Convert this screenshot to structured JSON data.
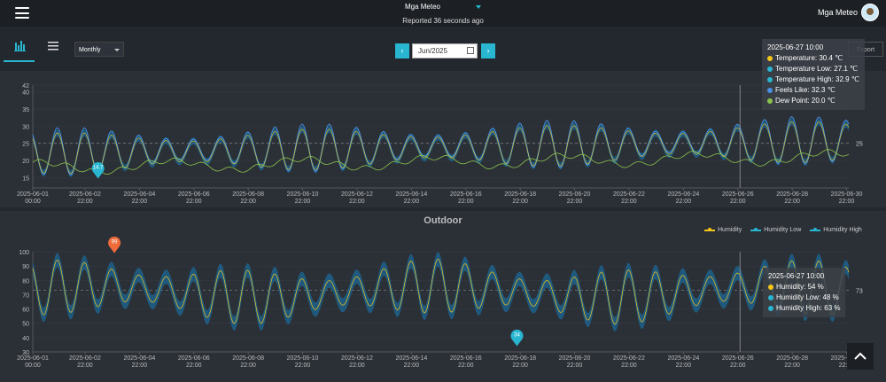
{
  "header": {
    "station": "Mga Meteo",
    "reported": "Reported 36 seconds ago",
    "user": "Mga Meteo"
  },
  "toolbar": {
    "period": "Monthly",
    "month": "Jun/2025",
    "prev": "‹",
    "next": "›",
    "export": "Export"
  },
  "temp_tooltip": {
    "time": "2025-06-27 10:00",
    "rows": [
      {
        "label": "Temperature: 30.4 ℃",
        "color": "#f5c518"
      },
      {
        "label": "Temperature Low: 27.1 ℃",
        "color": "#29b6d1"
      },
      {
        "label": "Temperature High: 32.9 ℃",
        "color": "#29b6d1"
      },
      {
        "label": "Feels Like: 32.3 ℃",
        "color": "#4a90e2"
      },
      {
        "label": "Dew Point: 20.0 ℃",
        "color": "#8bc34a"
      }
    ]
  },
  "hum_tooltip": {
    "time": "2025-06-27 10:00",
    "rows": [
      {
        "label": "Humidity: 54 %",
        "color": "#f5c518"
      },
      {
        "label": "Humidity Low: 48 %",
        "color": "#29b6d1"
      },
      {
        "label": "Humidity High: 63 %",
        "color": "#29b6d1"
      }
    ]
  },
  "outdoor_title": "Outdoor",
  "legend": [
    {
      "label": "Humidity",
      "color": "#f5c518"
    },
    {
      "label": "Humidity Low",
      "color": "#29b6d1"
    },
    {
      "label": "Humidity High",
      "color": "#29b6d1"
    }
  ],
  "x_ticks": [
    [
      "2025-06-01",
      "00:00"
    ],
    [
      "2025-06-02",
      "22:00"
    ],
    [
      "2025-06-04",
      "22:00"
    ],
    [
      "2025-06-06",
      "22:00"
    ],
    [
      "2025-06-08",
      "22:00"
    ],
    [
      "2025-06-10",
      "22:00"
    ],
    [
      "2025-06-12",
      "22:00"
    ],
    [
      "2025-06-14",
      "22:00"
    ],
    [
      "2025-06-16",
      "22:00"
    ],
    [
      "2025-06-18",
      "22:00"
    ],
    [
      "2025-06-20",
      "22:00"
    ],
    [
      "2025-06-22",
      "22:00"
    ],
    [
      "2025-06-24",
      "22:00"
    ],
    [
      "2025-06-26",
      "22:00"
    ],
    [
      "2025-06-28",
      "22:00"
    ],
    [
      "2025-06-30",
      "22:00"
    ]
  ],
  "chart_data": [
    {
      "type": "line",
      "y_ticks": [
        15,
        20,
        25,
        30,
        35,
        40,
        42
      ],
      "ylim": [
        12,
        42
      ],
      "avg_label": "25",
      "avg": 25,
      "min_marker": {
        "label": "14.7",
        "day": 3.4,
        "value": 14.7
      },
      "cursor_day": 27.0
    },
    {
      "type": "line",
      "y_ticks": [
        30,
        40,
        50,
        60,
        70,
        80,
        90,
        100
      ],
      "ylim": [
        30,
        100
      ],
      "avg_label": "73",
      "avg": 73,
      "max_marker": {
        "label": "99",
        "day": 4.0,
        "value": 99
      },
      "min_marker": {
        "label": "34",
        "day": 18.8,
        "value": 34
      },
      "cursor_day": 27.0
    }
  ]
}
